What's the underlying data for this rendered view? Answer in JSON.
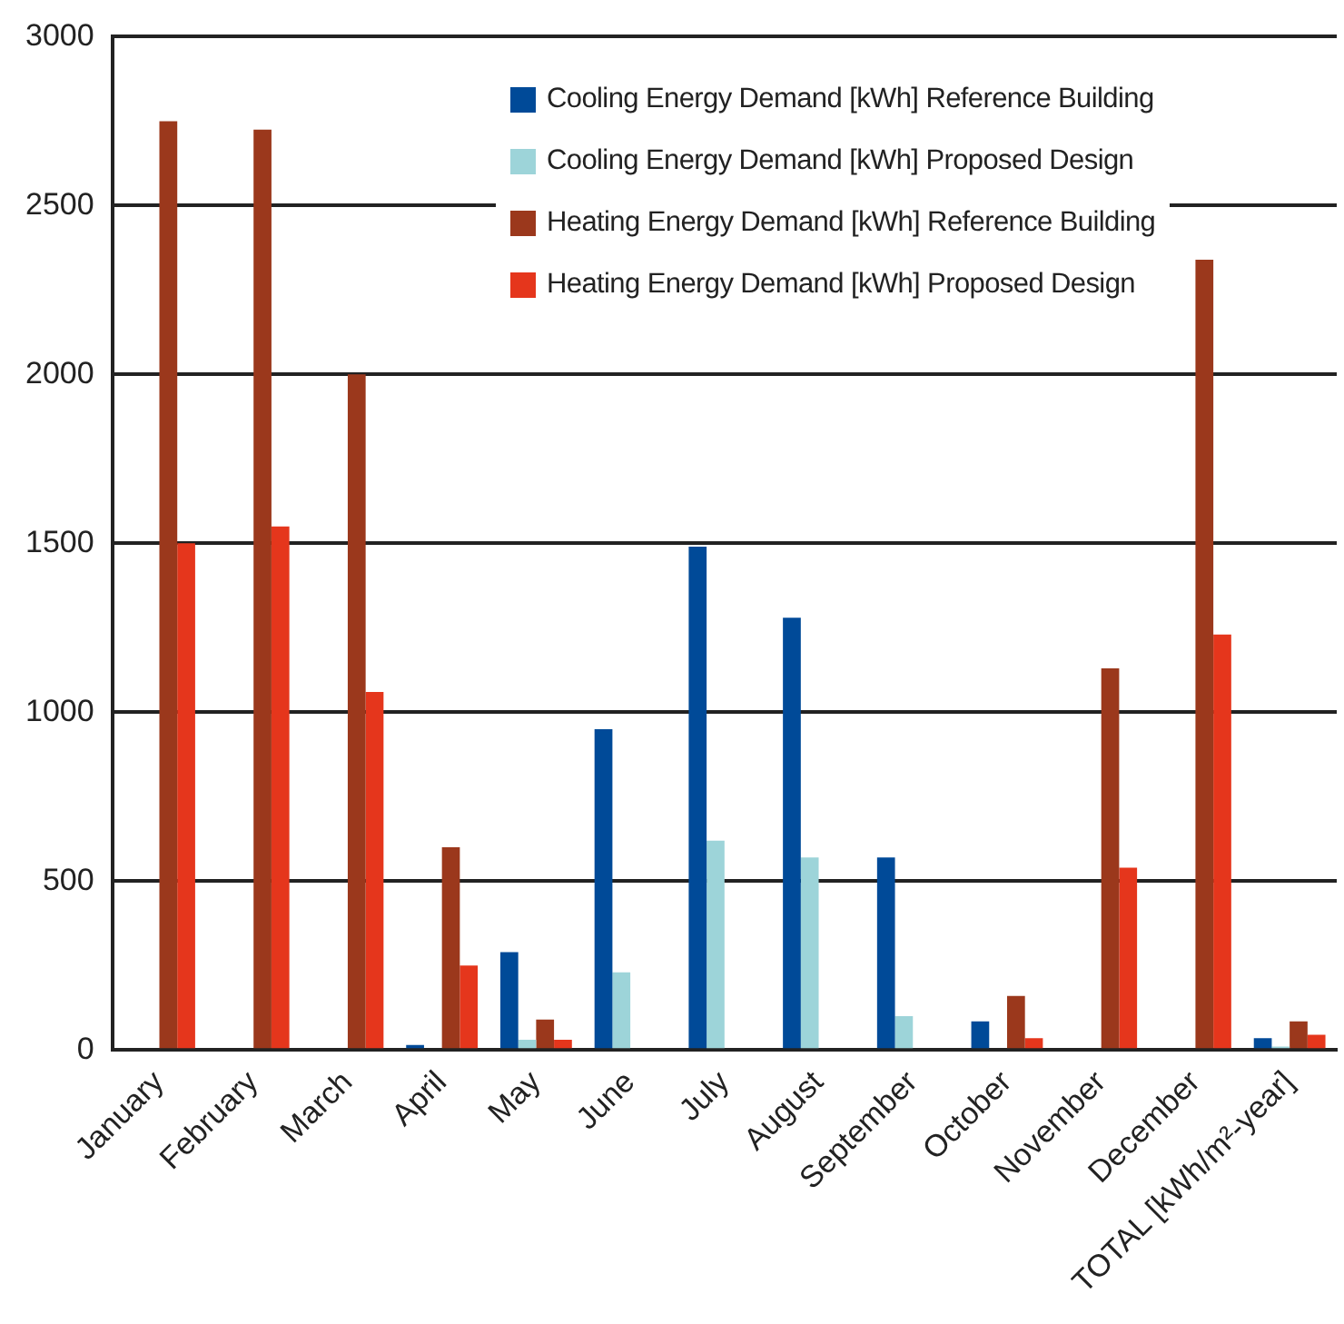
{
  "chart_data": {
    "type": "bar",
    "categories": [
      "January",
      "February",
      "March",
      "April",
      "May",
      "June",
      "July",
      "August",
      "September",
      "October",
      "November",
      "December",
      "TOTAL [kWh/m²-year]"
    ],
    "series": [
      {
        "name": "Cooling Energy Demand [kWh] Reference Building",
        "color": "#004a98",
        "values": [
          0,
          0,
          0,
          15,
          290,
          950,
          1490,
          1280,
          570,
          85,
          0,
          0,
          35
        ]
      },
      {
        "name": "Cooling Energy Demand [kWh] Proposed Design",
        "color": "#9dd4d9",
        "values": [
          0,
          0,
          0,
          0,
          30,
          230,
          620,
          570,
          100,
          0,
          0,
          0,
          10
        ]
      },
      {
        "name": "Heating Energy Demand [kWh] Reference Building",
        "color": "#9b381c",
        "values": [
          2750,
          2725,
          2000,
          600,
          90,
          0,
          0,
          0,
          0,
          160,
          1130,
          2340,
          85
        ]
      },
      {
        "name": "Heating Energy Demand [kWh] Proposed Design",
        "color": "#e5361c",
        "values": [
          1500,
          1550,
          1060,
          250,
          30,
          0,
          0,
          0,
          0,
          35,
          540,
          1230,
          45
        ]
      }
    ],
    "ylim": [
      0,
      3000
    ],
    "yticks": [
      0,
      500,
      1000,
      1500,
      2000,
      2500,
      3000
    ],
    "grid": "y",
    "legend": "top right"
  }
}
